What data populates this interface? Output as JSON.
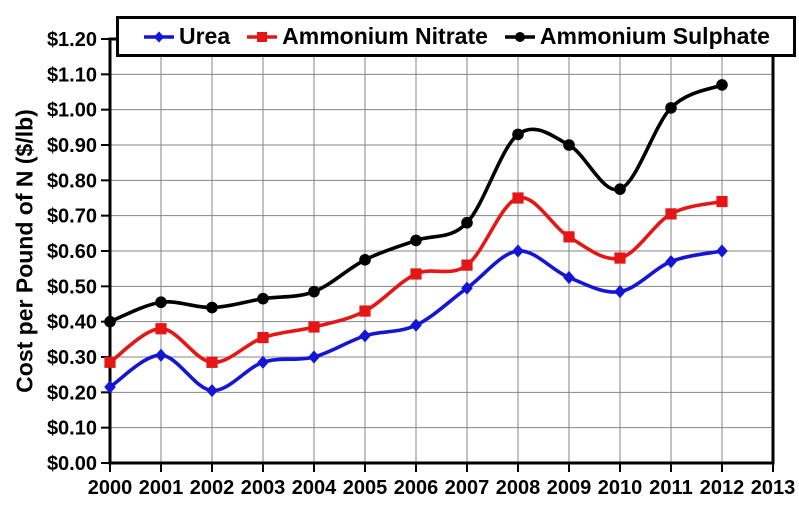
{
  "chart_data": {
    "type": "line",
    "title": "",
    "xlabel": "",
    "ylabel": "Cost per Pound of N ($/lb)",
    "x": [
      2000,
      2001,
      2002,
      2003,
      2004,
      2005,
      2006,
      2007,
      2008,
      2009,
      2010,
      2011,
      2012
    ],
    "x_axis_ticks": [
      2000,
      2001,
      2002,
      2003,
      2004,
      2005,
      2006,
      2007,
      2008,
      2009,
      2010,
      2011,
      2012,
      2013
    ],
    "x_tick_labels": [
      "2000",
      "2001",
      "2002",
      "2003",
      "2004",
      "2005",
      "2006",
      "2007",
      "2008",
      "2009",
      "2010",
      "2011",
      "2012",
      "2013"
    ],
    "ylim": [
      0.0,
      1.2
    ],
    "y_tick_step": 0.1,
    "y_tick_labels": [
      "$0.00",
      "$0.10",
      "$0.20",
      "$0.30",
      "$0.40",
      "$0.50",
      "$0.60",
      "$0.70",
      "$0.80",
      "$0.90",
      "$1.00",
      "$1.10",
      "$1.20"
    ],
    "grid": "both",
    "legend_position": "top",
    "series": [
      {
        "name": "Urea",
        "color": "#1515d6",
        "marker": "diamond",
        "values": [
          0.215,
          0.305,
          0.205,
          0.285,
          0.3,
          0.36,
          0.39,
          0.495,
          0.6,
          0.525,
          0.485,
          0.57,
          0.6
        ]
      },
      {
        "name": "Ammonium Nitrate",
        "color": "#e41616",
        "marker": "square",
        "values": [
          0.285,
          0.38,
          0.285,
          0.355,
          0.385,
          0.43,
          0.535,
          0.56,
          0.75,
          0.64,
          0.58,
          0.705,
          0.74
        ]
      },
      {
        "name": "Ammonium Sulphate",
        "color": "#000000",
        "marker": "circle",
        "values": [
          0.4,
          0.455,
          0.44,
          0.465,
          0.485,
          0.575,
          0.63,
          0.68,
          0.93,
          0.9,
          0.775,
          1.005,
          1.07
        ]
      }
    ]
  },
  "colors": {
    "background": "#ffffff",
    "gridline": "#858585",
    "axis": "#000000"
  }
}
